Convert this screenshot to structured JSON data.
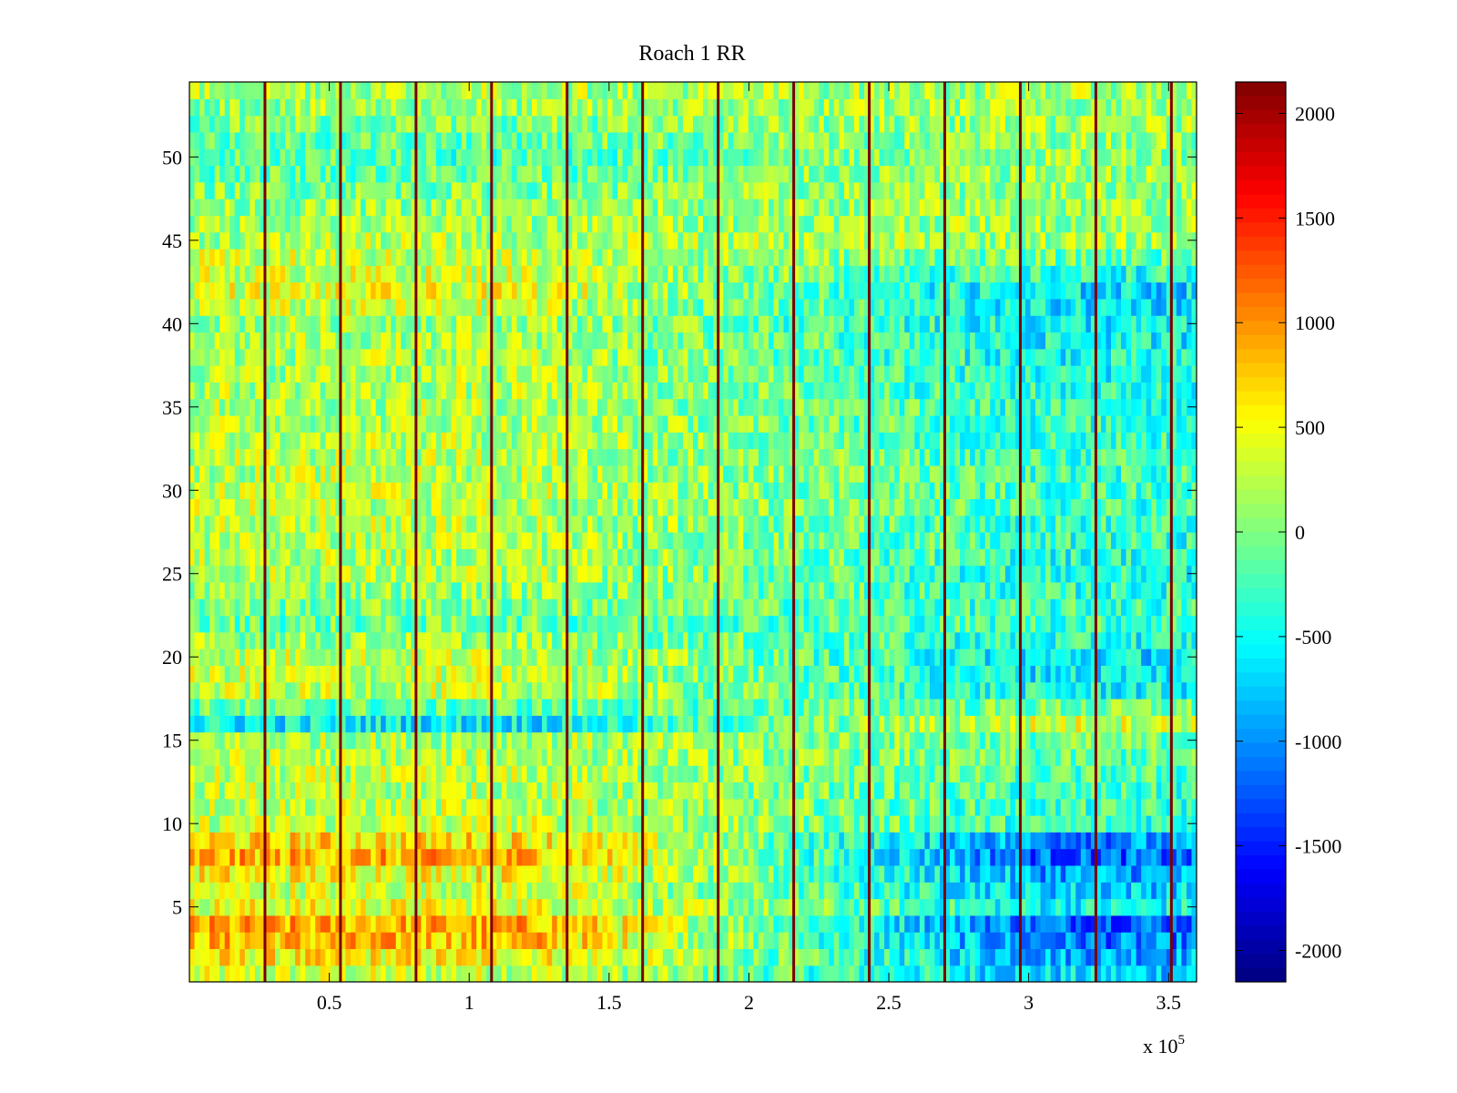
{
  "chart_data": {
    "type": "heatmap",
    "title": "Roach 1 RR",
    "xlabel": "",
    "ylabel": "",
    "x_multiplier_label": "x 10",
    "x_multiplier_exponent": "5",
    "xlim": [
      0,
      3.6
    ],
    "ylim": [
      0.5,
      54.5
    ],
    "x_ticks": [
      0.5,
      1,
      1.5,
      2,
      2.5,
      3,
      3.5
    ],
    "x_tick_labels": [
      "0.5",
      "1",
      "1.5",
      "2",
      "2.5",
      "3",
      "3.5"
    ],
    "y_ticks": [
      5,
      10,
      15,
      20,
      25,
      30,
      35,
      40,
      45,
      50
    ],
    "y_tick_labels": [
      "5",
      "10",
      "15",
      "20",
      "25",
      "30",
      "35",
      "40",
      "45",
      "50"
    ],
    "n_channels": 54,
    "colormap": "jet",
    "clim": [
      -2150,
      2150
    ],
    "colorbar_ticks": [
      2000,
      1500,
      1000,
      500,
      0,
      -500,
      -1000,
      -1500,
      -2000
    ],
    "colorbar_tick_labels": [
      "2000",
      "1500",
      "1000",
      "500",
      "0",
      "-500",
      "-1000",
      "-1500",
      "-2000"
    ],
    "segment_boundaries_x1e5": [
      0.27,
      0.54,
      0.81,
      1.08,
      1.35,
      1.62,
      1.89,
      2.16,
      2.43,
      2.7,
      2.97,
      3.24,
      3.51
    ],
    "segment_boundary_value": 2100,
    "channel_value_profile_left": {
      "channels": [
        1,
        2,
        3,
        4,
        5,
        6,
        7,
        8,
        9,
        10,
        12,
        15,
        16,
        18,
        20,
        22,
        25,
        30,
        35,
        40,
        42,
        45,
        48,
        50,
        54
      ],
      "values": [
        300,
        550,
        800,
        850,
        450,
        350,
        550,
        850,
        650,
        300,
        250,
        200,
        -550,
        250,
        300,
        -100,
        200,
        250,
        200,
        150,
        400,
        200,
        0,
        -200,
        200
      ]
    },
    "channel_value_profile_right": {
      "channels": [
        1,
        2,
        3,
        4,
        5,
        6,
        7,
        8,
        9,
        10,
        12,
        15,
        16,
        18,
        20,
        22,
        25,
        30,
        35,
        40,
        42,
        45,
        48,
        50,
        54
      ],
      "values": [
        -700,
        -850,
        -1100,
        -1150,
        -500,
        -700,
        -900,
        -1200,
        -1000,
        -300,
        -300,
        -100,
        350,
        -500,
        -600,
        -250,
        -400,
        -250,
        -350,
        -550,
        -650,
        150,
        100,
        100,
        150
      ]
    }
  }
}
